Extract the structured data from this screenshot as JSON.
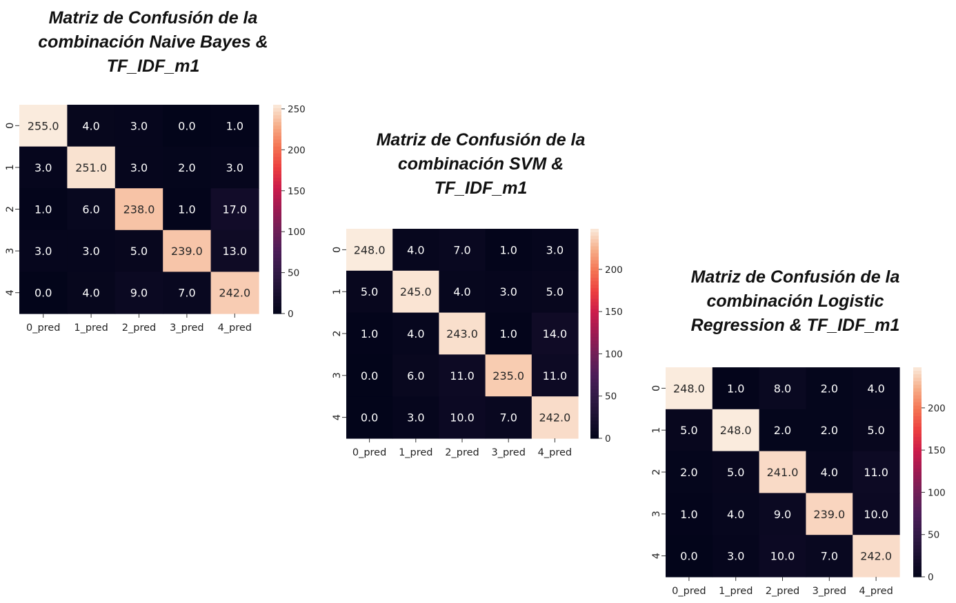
{
  "chart_data": [
    {
      "type": "heatmap",
      "title_lines": [
        "Matriz de Confusión de la",
        "combinación Naive Bayes &",
        "TF_IDF_m1"
      ],
      "x": [
        "0_pred",
        "1_pred",
        "2_pred",
        "3_pred",
        "4_pred"
      ],
      "y": [
        "0",
        "1",
        "2",
        "3",
        "4"
      ],
      "values": [
        [
          255.0,
          4.0,
          3.0,
          0.0,
          1.0
        ],
        [
          3.0,
          251.0,
          3.0,
          2.0,
          3.0
        ],
        [
          1.0,
          6.0,
          238.0,
          1.0,
          17.0
        ],
        [
          3.0,
          3.0,
          5.0,
          239.0,
          13.0
        ],
        [
          0.0,
          4.0,
          9.0,
          7.0,
          242.0
        ]
      ],
      "value_labels": [
        [
          "255.0",
          "4.0",
          "3.0",
          "0.0",
          "1.0"
        ],
        [
          "3.0",
          "251.0",
          "3.0",
          "2.0",
          "3.0"
        ],
        [
          "1.0",
          "6.0",
          "238.0",
          "1.0",
          "17.0"
        ],
        [
          "3.0",
          "3.0",
          "5.0",
          "239.0",
          "13.0"
        ],
        [
          "0.0",
          "4.0",
          "9.0",
          "7.0",
          "242.0"
        ]
      ],
      "colorbar_range": [
        0,
        255
      ],
      "colorbar_ticks": [
        0,
        50,
        100,
        150,
        200,
        250
      ],
      "colorbar_tick_labels": [
        "0",
        "50",
        "100",
        "150",
        "200",
        "250"
      ]
    },
    {
      "type": "heatmap",
      "title_lines": [
        "Matriz de Confusión de la",
        "combinación SVM &",
        "TF_IDF_m1"
      ],
      "x": [
        "0_pred",
        "1_pred",
        "2_pred",
        "3_pred",
        "4_pred"
      ],
      "y": [
        "0",
        "1",
        "2",
        "3",
        "4"
      ],
      "values": [
        [
          248.0,
          4.0,
          7.0,
          1.0,
          3.0
        ],
        [
          5.0,
          245.0,
          4.0,
          3.0,
          5.0
        ],
        [
          1.0,
          4.0,
          243.0,
          1.0,
          14.0
        ],
        [
          0.0,
          6.0,
          11.0,
          235.0,
          11.0
        ],
        [
          0.0,
          3.0,
          10.0,
          7.0,
          242.0
        ]
      ],
      "value_labels": [
        [
          "248.0",
          "4.0",
          "7.0",
          "1.0",
          "3.0"
        ],
        [
          "5.0",
          "245.0",
          "4.0",
          "3.0",
          "5.0"
        ],
        [
          "1.0",
          "4.0",
          "243.0",
          "1.0",
          "14.0"
        ],
        [
          "0.0",
          "6.0",
          "11.0",
          "235.0",
          "11.0"
        ],
        [
          "0.0",
          "3.0",
          "10.0",
          "7.0",
          "242.0"
        ]
      ],
      "colorbar_range": [
        0,
        248
      ],
      "colorbar_ticks": [
        0,
        50,
        100,
        150,
        200
      ],
      "colorbar_tick_labels": [
        "0",
        "50",
        "100",
        "150",
        "200"
      ]
    },
    {
      "type": "heatmap",
      "title_lines": [
        "Matriz de Confusión de la",
        "combinación Logistic",
        "Regression & TF_IDF_m1"
      ],
      "x": [
        "0_pred",
        "1_pred",
        "2_pred",
        "3_pred",
        "4_pred"
      ],
      "y": [
        "0",
        "1",
        "2",
        "3",
        "4"
      ],
      "values": [
        [
          248.0,
          1.0,
          8.0,
          2.0,
          4.0
        ],
        [
          5.0,
          248.0,
          2.0,
          2.0,
          5.0
        ],
        [
          2.0,
          5.0,
          241.0,
          4.0,
          11.0
        ],
        [
          1.0,
          4.0,
          9.0,
          239.0,
          10.0
        ],
        [
          0.0,
          3.0,
          10.0,
          7.0,
          242.0
        ]
      ],
      "value_labels": [
        [
          "248.0",
          "1.0",
          "8.0",
          "2.0",
          "4.0"
        ],
        [
          "5.0",
          "248.0",
          "2.0",
          "2.0",
          "5.0"
        ],
        [
          "2.0",
          "5.0",
          "241.0",
          "4.0",
          "11.0"
        ],
        [
          "1.0",
          "4.0",
          "9.0",
          "239.0",
          "10.0"
        ],
        [
          "0.0",
          "3.0",
          "10.0",
          "7.0",
          "242.0"
        ]
      ],
      "colorbar_range": [
        0,
        248
      ],
      "colorbar_ticks": [
        0,
        50,
        100,
        150,
        200
      ],
      "colorbar_tick_labels": [
        "0",
        "50",
        "100",
        "150",
        "200"
      ]
    }
  ],
  "colors": {
    "colormap": "rocket",
    "text_on_dark": "#ffffff",
    "text_on_light": "#262626"
  }
}
